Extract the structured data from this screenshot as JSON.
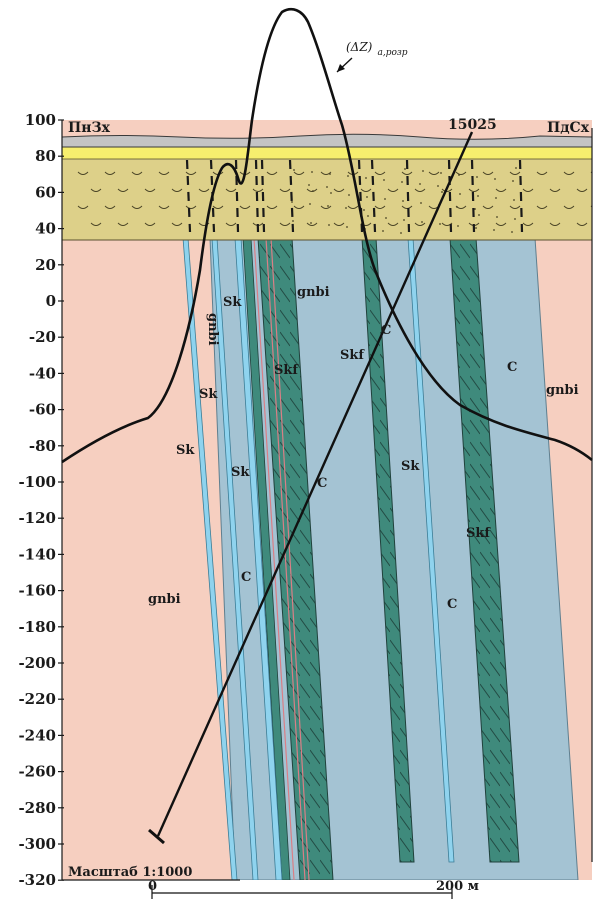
{
  "header": {
    "left_direction": "ПнЗх",
    "right_direction": "ПдСх",
    "borehole_label": "15025"
  },
  "curve": {
    "label_main": "(ΔZ)",
    "label_sub": "а,розр"
  },
  "depth_axis": {
    "ticks": [
      "100",
      "80",
      "60",
      "40",
      "20",
      "0",
      "-20",
      "-40",
      "-60",
      "-80",
      "-100",
      "-120",
      "-140",
      "-160",
      "-180",
      "-200",
      "-220",
      "-240",
      "-260",
      "-280",
      "-300",
      "-320"
    ]
  },
  "units": [
    {
      "id": "gnbi",
      "label": "gnbi",
      "color": "#f6cfc0"
    },
    {
      "id": "Sk",
      "label": "Sk",
      "color": "#8fd3ee"
    },
    {
      "id": "Skf",
      "label": "Skf",
      "color": "#3f8a7c"
    },
    {
      "id": "C",
      "label": "C",
      "color": "#a4c3d3"
    }
  ],
  "cover": {
    "sand_color": "#ddd089",
    "top_color": "#c4c4c4",
    "yellow_color": "#f7ef6e"
  },
  "labels": {
    "gnbi_vertical": "gnbi",
    "gnbi_left": "gnbi",
    "gnbi_right": "gnbi",
    "gnbi_upper": "gnbi",
    "sk_1": "Sk",
    "sk_2": "Sk",
    "sk_3": "Sk",
    "sk_4": "Sk",
    "sk_5": "Sk",
    "skf_1": "Skf",
    "skf_2": "Skf",
    "skf_3": "Skf",
    "c_1": "C",
    "c_2": "C",
    "c_3": "C",
    "c_4": "C",
    "c_5": "C"
  },
  "scale": {
    "text": "Масштаб 1:1000",
    "bar_start": "0",
    "bar_end": "200 м"
  }
}
